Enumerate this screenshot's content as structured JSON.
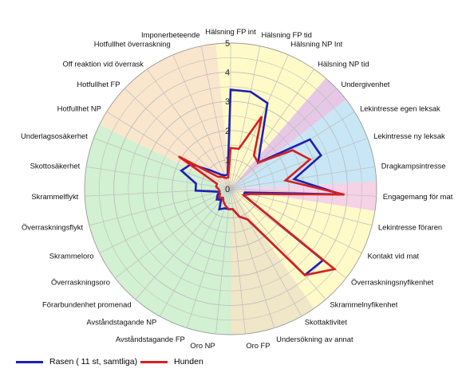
{
  "chart_data": {
    "type": "radar",
    "rmax": 5,
    "rticks": [
      0,
      1,
      2,
      3,
      4,
      5
    ],
    "tick_labels": [
      "0",
      "1",
      "2",
      "3",
      "4",
      "5"
    ],
    "categories": [
      "Hälsning FP int",
      "Hälsning FP tid",
      "Hälsning NP Int",
      "Hälsning NP tid",
      "Undergivenhet",
      "Lekintresse egen leksak",
      "Lekintresse ny leksak",
      "Dragkampsintresse",
      "Engagemang för mat",
      "Lekintresse föraren",
      "Kontakt vid mat",
      "Överraskningsnyfikenhet",
      "Skrammelnyfikenhet",
      "Skottaktivitet",
      "Undersökning av annat",
      "Oro FP",
      "Oro NP",
      "Avståndstagande FP",
      "Avståndstagande NP",
      "Förarbundenhet promenad",
      "Överraskningsoro",
      "Skrammeloro",
      "Överraskningsflykt",
      "Skrammelflykt",
      "Skottosäkerhet",
      "Underlagsosäkerhet",
      "Hotfullhet NP",
      "Hotfullhet FP",
      "Off reaktion vid överrask",
      "Hotfullhet överraskning",
      "Imponerbeteende"
    ],
    "series": [
      {
        "name": "Rasen ( 11 st, samtliga)",
        "color": "#1f1fb4",
        "values": [
          3.4,
          3.4,
          3.2,
          1.8,
          1.3,
          3.2,
          3.3,
          2.2,
          3.8,
          0.5,
          0.5,
          4.0,
          3.9,
          1.2,
          1.0,
          0.7,
          0.7,
          0.7,
          0.8,
          0.5,
          0.6,
          0.5,
          0.4,
          1.2,
          1.2,
          1.8,
          1.6,
          0.9,
          0.6,
          0.5,
          0.5
        ]
      },
      {
        "name": "Hunden",
        "color": "#d42020",
        "values": [
          1.4,
          1.4,
          2.7,
          1.4,
          1.3,
          2.5,
          2.9,
          1.9,
          3.9,
          0.7,
          0.5,
          4.5,
          3.9,
          1.2,
          1.0,
          0.7,
          0.7,
          0.6,
          0.5,
          0.4,
          0.5,
          0.4,
          0.4,
          0.4,
          0.5,
          0.5,
          2.1,
          0.6,
          0.5,
          0.4,
          0.4
        ]
      }
    ],
    "sectors": [
      {
        "from": 0,
        "to": 3,
        "color": "#fffac8"
      },
      {
        "from": 4,
        "to": 4,
        "color": "#e6c8e6"
      },
      {
        "from": 5,
        "to": 7,
        "color": "#c8e6f5"
      },
      {
        "from": 8,
        "to": 8,
        "color": "#f5d2e6"
      },
      {
        "from": 9,
        "to": 12,
        "color": "#fffac8"
      },
      {
        "from": 13,
        "to": 15,
        "color": "#f0e6c8"
      },
      {
        "from": 16,
        "to": 25,
        "color": "#d2f0d2"
      },
      {
        "from": 26,
        "to": 30,
        "color": "#fae6cd"
      }
    ],
    "grid": true,
    "legend": "bottom-left"
  }
}
